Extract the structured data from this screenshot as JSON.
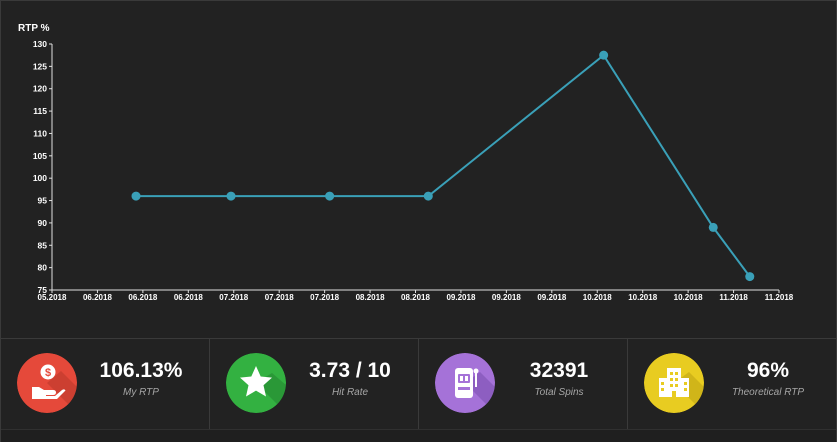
{
  "chart_data": {
    "type": "line",
    "ylabel": "RTP %",
    "ylim": [
      75,
      130
    ],
    "yticks": [
      75,
      80,
      85,
      90,
      95,
      100,
      105,
      110,
      115,
      120,
      125,
      130
    ],
    "xtick_labels": [
      "05.2018",
      "06.2018",
      "06.2018",
      "06.2018",
      "07.2018",
      "07.2018",
      "07.2018",
      "08.2018",
      "08.2018",
      "09.2018",
      "09.2018",
      "09.2018",
      "10.2018",
      "10.2018",
      "10.2018",
      "11.2018",
      "11.2018"
    ],
    "series": [
      {
        "color": "#3aa0b8",
        "points": [
          {
            "x": "2018-05-24",
            "y": 96
          },
          {
            "x": "2018-06-19",
            "y": 96
          },
          {
            "x": "2018-07-16",
            "y": 96
          },
          {
            "x": "2018-08-12",
            "y": 96
          },
          {
            "x": "2018-09-29",
            "y": 127.5
          },
          {
            "x": "2018-10-29",
            "y": 89
          },
          {
            "x": "2018-11-08",
            "y": 78
          }
        ]
      }
    ],
    "grid": false
  },
  "stats": [
    {
      "value": "106.13%",
      "label": "My RTP",
      "icon": "hand-coin-icon",
      "color": "#e5493a"
    },
    {
      "value": "3.73 / 10",
      "label": "Hit Rate",
      "icon": "star-icon",
      "color": "#33b141"
    },
    {
      "value": "32391",
      "label": "Total Spins",
      "icon": "slot-machine-icon",
      "color": "#a572d8"
    },
    {
      "value": "96%",
      "label": "Theoretical RTP",
      "icon": "building-icon",
      "color": "#e8cc21"
    }
  ]
}
